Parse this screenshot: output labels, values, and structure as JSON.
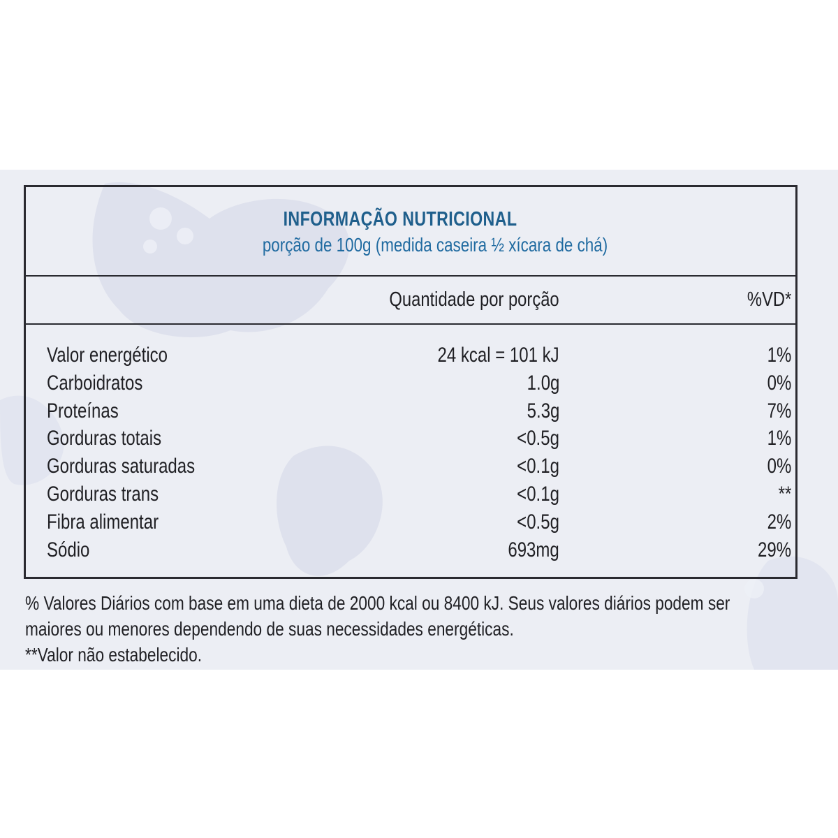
{
  "panel": {
    "title": "INFORMAÇÃO NUTRICIONAL",
    "serving": "porção de 100g (medida caseira ½ xícara de chá)"
  },
  "columns": {
    "quantity": "Quantidade por porção",
    "daily_value": "%VD*"
  },
  "nutrients": [
    {
      "name": "Valor energético",
      "quantity": "24 kcal = 101 kJ",
      "daily_value": "1%"
    },
    {
      "name": "Carboidratos",
      "quantity": "1.0g",
      "daily_value": "0%"
    },
    {
      "name": "Proteínas",
      "quantity": "5.3g",
      "daily_value": "7%"
    },
    {
      "name": "Gorduras totais",
      "quantity": "<0.5g",
      "daily_value": "1%"
    },
    {
      "name": "Gorduras saturadas",
      "quantity": "<0.1g",
      "daily_value": "0%"
    },
    {
      "name": "Gorduras trans",
      "quantity": "<0.1g",
      "daily_value": "**"
    },
    {
      "name": "Fibra alimentar",
      "quantity": "<0.5g",
      "daily_value": "2%"
    },
    {
      "name": "Sódio",
      "quantity": "693mg",
      "daily_value": "29%"
    }
  ],
  "footnotes": {
    "line1": "% Valores Diários com base em uma dieta de 2000 kcal ou 8400 kJ. Seus valores diários podem ser",
    "line2": "maiores ou menores dependendo de suas necessidades energéticas.",
    "line3": "**Valor não estabelecido."
  },
  "colors": {
    "title": "#1f5f8c",
    "text": "#1f1f23",
    "background": "#eceef4",
    "border": "#2a2a30"
  }
}
